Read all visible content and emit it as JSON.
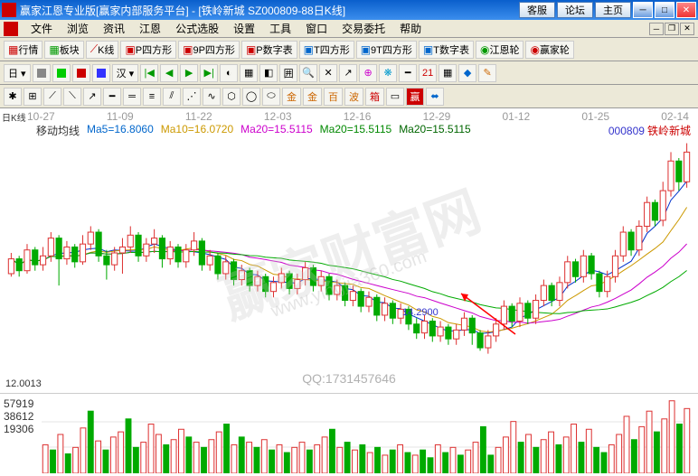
{
  "window": {
    "title": "赢家江恩专业版[赢家内部服务平台] - [铁岭新城  SZ000809-88日K线]",
    "btns": [
      "客服",
      "论坛",
      "主页"
    ]
  },
  "menu": [
    "文件",
    "浏览",
    "资讯",
    "江恩",
    "公式选股",
    "设置",
    "工具",
    "窗口",
    "交易委托",
    "帮助"
  ],
  "tb1": [
    "行情",
    "板块",
    "K线",
    "P四方形",
    "9P四方形",
    "P数字表",
    "T四方形",
    "9T四方形",
    "T数字表",
    "江恩轮",
    "赢家轮"
  ],
  "chart": {
    "sidelabel": "日K线",
    "dates": [
      "10-27",
      "11-09",
      "11-22",
      "12-03",
      "12-16",
      "12-29",
      "01-12",
      "01-25",
      "02-14"
    ],
    "ma_label": "移动均线",
    "ma": [
      {
        "name": "Ma5=16.8060",
        "color": "#0066cc"
      },
      {
        "name": "Ma10=16.0720",
        "color": "#cc9900"
      },
      {
        "name": "Ma20=15.5115",
        "color": "#cc00cc"
      },
      {
        "name": "Ma20=15.5115",
        "color": "#008800"
      },
      {
        "name": "Ma20=15.5115",
        "color": "#006600"
      }
    ],
    "stock_code": "000809",
    "stock_name": "铁岭新城",
    "price_annot": "14.2900",
    "ylow": "12.0013",
    "ylim": [
      11.5,
      20
    ],
    "candles": [
      {
        "o": 15.4,
        "c": 15.9,
        "h": 16.1,
        "l": 15.3
      },
      {
        "o": 15.9,
        "c": 15.5,
        "h": 16.0,
        "l": 15.3
      },
      {
        "o": 15.5,
        "c": 16.2,
        "h": 16.4,
        "l": 15.4
      },
      {
        "o": 16.2,
        "c": 15.7,
        "h": 16.3,
        "l": 15.5
      },
      {
        "o": 15.7,
        "c": 16.0,
        "h": 16.3,
        "l": 15.5
      },
      {
        "o": 16.0,
        "c": 16.6,
        "h": 16.8,
        "l": 15.8
      },
      {
        "o": 16.6,
        "c": 15.9,
        "h": 16.7,
        "l": 15.0
      },
      {
        "o": 15.9,
        "c": 16.3,
        "h": 16.5,
        "l": 15.7
      },
      {
        "o": 16.3,
        "c": 15.8,
        "h": 16.4,
        "l": 15.6
      },
      {
        "o": 15.8,
        "c": 16.4,
        "h": 16.7,
        "l": 15.7
      },
      {
        "o": 16.4,
        "c": 16.8,
        "h": 17.0,
        "l": 16.2
      },
      {
        "o": 16.8,
        "c": 16.0,
        "h": 16.9,
        "l": 15.8
      },
      {
        "o": 16.0,
        "c": 15.7,
        "h": 16.2,
        "l": 15.2
      },
      {
        "o": 15.7,
        "c": 16.1,
        "h": 16.3,
        "l": 15.5
      },
      {
        "o": 16.1,
        "c": 16.3,
        "h": 16.6,
        "l": 15.4
      },
      {
        "o": 16.3,
        "c": 16.7,
        "h": 17.0,
        "l": 16.1
      },
      {
        "o": 16.7,
        "c": 16.0,
        "h": 16.8,
        "l": 15.8
      },
      {
        "o": 16.0,
        "c": 16.4,
        "h": 16.6,
        "l": 15.8
      },
      {
        "o": 16.4,
        "c": 16.6,
        "h": 16.9,
        "l": 16.1
      },
      {
        "o": 16.6,
        "c": 15.9,
        "h": 16.7,
        "l": 15.6
      },
      {
        "o": 15.9,
        "c": 16.3,
        "h": 16.5,
        "l": 15.7
      },
      {
        "o": 16.3,
        "c": 15.8,
        "h": 16.4,
        "l": 15.6
      },
      {
        "o": 15.8,
        "c": 16.2,
        "h": 16.4,
        "l": 15.6
      },
      {
        "o": 16.2,
        "c": 16.5,
        "h": 16.8,
        "l": 16.0
      },
      {
        "o": 16.5,
        "c": 15.7,
        "h": 16.6,
        "l": 15.5
      },
      {
        "o": 15.7,
        "c": 16.0,
        "h": 16.2,
        "l": 15.5
      },
      {
        "o": 16.0,
        "c": 15.4,
        "h": 16.1,
        "l": 15.2
      },
      {
        "o": 15.4,
        "c": 15.8,
        "h": 16.0,
        "l": 15.2
      },
      {
        "o": 15.8,
        "c": 15.2,
        "h": 15.9,
        "l": 15.0
      },
      {
        "o": 15.2,
        "c": 15.5,
        "h": 15.7,
        "l": 15.0
      },
      {
        "o": 15.5,
        "c": 15.0,
        "h": 15.6,
        "l": 14.8
      },
      {
        "o": 15.0,
        "c": 15.3,
        "h": 15.5,
        "l": 14.8
      },
      {
        "o": 15.3,
        "c": 14.8,
        "h": 15.4,
        "l": 14.6
      },
      {
        "o": 14.8,
        "c": 15.1,
        "h": 15.3,
        "l": 14.6
      },
      {
        "o": 15.1,
        "c": 15.4,
        "h": 15.6,
        "l": 14.9
      },
      {
        "o": 15.4,
        "c": 14.9,
        "h": 15.5,
        "l": 14.7
      },
      {
        "o": 14.9,
        "c": 15.2,
        "h": 15.4,
        "l": 14.7
      },
      {
        "o": 15.2,
        "c": 15.6,
        "h": 15.8,
        "l": 15.0
      },
      {
        "o": 15.6,
        "c": 15.0,
        "h": 15.7,
        "l": 14.8
      },
      {
        "o": 15.0,
        "c": 15.3,
        "h": 15.5,
        "l": 14.8
      },
      {
        "o": 15.3,
        "c": 14.7,
        "h": 15.4,
        "l": 14.5
      },
      {
        "o": 14.7,
        "c": 15.0,
        "h": 15.2,
        "l": 14.5
      },
      {
        "o": 15.0,
        "c": 14.5,
        "h": 15.1,
        "l": 14.3
      },
      {
        "o": 14.5,
        "c": 14.8,
        "h": 15.0,
        "l": 14.3
      },
      {
        "o": 14.8,
        "c": 14.3,
        "h": 14.9,
        "l": 14.1
      },
      {
        "o": 14.3,
        "c": 14.6,
        "h": 14.8,
        "l": 14.1
      },
      {
        "o": 14.6,
        "c": 14.0,
        "h": 14.7,
        "l": 13.8
      },
      {
        "o": 14.0,
        "c": 14.4,
        "h": 14.6,
        "l": 13.8
      },
      {
        "o": 14.4,
        "c": 13.9,
        "h": 14.5,
        "l": 13.7
      },
      {
        "o": 13.9,
        "c": 14.2,
        "h": 14.4,
        "l": 13.7
      },
      {
        "o": 14.2,
        "c": 13.7,
        "h": 14.3,
        "l": 13.5
      },
      {
        "o": 13.7,
        "c": 13.4,
        "h": 13.9,
        "l": 13.2
      },
      {
        "o": 13.4,
        "c": 13.8,
        "h": 14.0,
        "l": 13.2
      },
      {
        "o": 13.8,
        "c": 13.3,
        "h": 13.9,
        "l": 13.1
      },
      {
        "o": 13.3,
        "c": 13.6,
        "h": 13.8,
        "l": 13.1
      },
      {
        "o": 13.6,
        "c": 13.2,
        "h": 13.7,
        "l": 13.0
      },
      {
        "o": 13.2,
        "c": 13.5,
        "h": 13.7,
        "l": 13.0
      },
      {
        "o": 13.5,
        "c": 13.9,
        "h": 14.1,
        "l": 13.3
      },
      {
        "o": 13.9,
        "c": 13.4,
        "h": 14.0,
        "l": 13.0
      },
      {
        "o": 13.4,
        "c": 12.9,
        "h": 13.5,
        "l": 12.8
      },
      {
        "o": 12.9,
        "c": 13.3,
        "h": 13.5,
        "l": 12.7
      },
      {
        "o": 13.3,
        "c": 13.7,
        "h": 13.9,
        "l": 13.1
      },
      {
        "o": 13.7,
        "c": 14.3,
        "h": 14.5,
        "l": 13.5
      },
      {
        "o": 14.3,
        "c": 13.8,
        "h": 14.4,
        "l": 13.6
      },
      {
        "o": 13.8,
        "c": 14.4,
        "h": 14.6,
        "l": 13.6
      },
      {
        "o": 14.4,
        "c": 13.9,
        "h": 14.5,
        "l": 13.7
      },
      {
        "o": 13.9,
        "c": 14.5,
        "h": 14.7,
        "l": 13.7
      },
      {
        "o": 14.5,
        "c": 15.0,
        "h": 15.2,
        "l": 14.3
      },
      {
        "o": 15.0,
        "c": 14.5,
        "h": 15.1,
        "l": 14.3
      },
      {
        "o": 14.5,
        "c": 15.1,
        "h": 15.3,
        "l": 14.3
      },
      {
        "o": 15.1,
        "c": 15.8,
        "h": 16.0,
        "l": 14.9
      },
      {
        "o": 15.8,
        "c": 15.3,
        "h": 15.9,
        "l": 15.1
      },
      {
        "o": 15.3,
        "c": 16.0,
        "h": 16.2,
        "l": 15.1
      },
      {
        "o": 16.0,
        "c": 15.4,
        "h": 16.1,
        "l": 15.2
      },
      {
        "o": 15.4,
        "c": 14.8,
        "h": 15.5,
        "l": 14.6
      },
      {
        "o": 14.8,
        "c": 15.3,
        "h": 15.5,
        "l": 14.6
      },
      {
        "o": 15.3,
        "c": 16.0,
        "h": 16.2,
        "l": 15.1
      },
      {
        "o": 16.0,
        "c": 16.8,
        "h": 17.0,
        "l": 15.8
      },
      {
        "o": 16.8,
        "c": 16.2,
        "h": 16.9,
        "l": 16.0
      },
      {
        "o": 16.2,
        "c": 17.0,
        "h": 17.2,
        "l": 16.0
      },
      {
        "o": 17.0,
        "c": 17.8,
        "h": 18.0,
        "l": 16.8
      },
      {
        "o": 17.8,
        "c": 17.2,
        "h": 17.9,
        "l": 17.0
      },
      {
        "o": 17.2,
        "c": 18.2,
        "h": 18.5,
        "l": 17.0
      },
      {
        "o": 18.2,
        "c": 19.2,
        "h": 19.5,
        "l": 18.0
      },
      {
        "o": 19.2,
        "c": 18.5,
        "h": 19.3,
        "l": 18.2
      },
      {
        "o": 18.5,
        "c": 19.5,
        "h": 19.8,
        "l": 18.3
      }
    ],
    "ma_lines": {
      "ma5": {
        "color": "#0033cc"
      },
      "ma10": {
        "color": "#cc9900"
      },
      "ma20": {
        "color": "#cc00cc"
      },
      "ma30": {
        "color": "#00aa00"
      }
    }
  },
  "volume": {
    "labels": [
      "57919",
      "38612",
      "19306"
    ],
    "max": 60000,
    "bars": [
      22000,
      18000,
      30000,
      15000,
      20000,
      35000,
      48000,
      25000,
      18000,
      28000,
      32000,
      42000,
      20000,
      24000,
      38000,
      30000,
      22000,
      26000,
      34000,
      28000,
      24000,
      20000,
      26000,
      32000,
      38000,
      22000,
      28000,
      24000,
      20000,
      26000,
      18000,
      22000,
      16000,
      20000,
      24000,
      18000,
      22000,
      28000,
      34000,
      20000,
      24000,
      18000,
      22000,
      16000,
      20000,
      14000,
      18000,
      22000,
      16000,
      14000,
      18000,
      12000,
      22000,
      16000,
      20000,
      14000,
      18000,
      24000,
      36000,
      14000,
      20000,
      28000,
      40000,
      24000,
      30000,
      20000,
      26000,
      32000,
      22000,
      28000,
      38000,
      24000,
      34000,
      20000,
      16000,
      22000,
      30000,
      44000,
      26000,
      36000,
      48000,
      32000,
      42000,
      56000,
      38000,
      50000
    ]
  },
  "watermark": {
    "main": "赢家财富网",
    "url": "www.yingjia360.com",
    "qq": "QQ:1731457646"
  }
}
